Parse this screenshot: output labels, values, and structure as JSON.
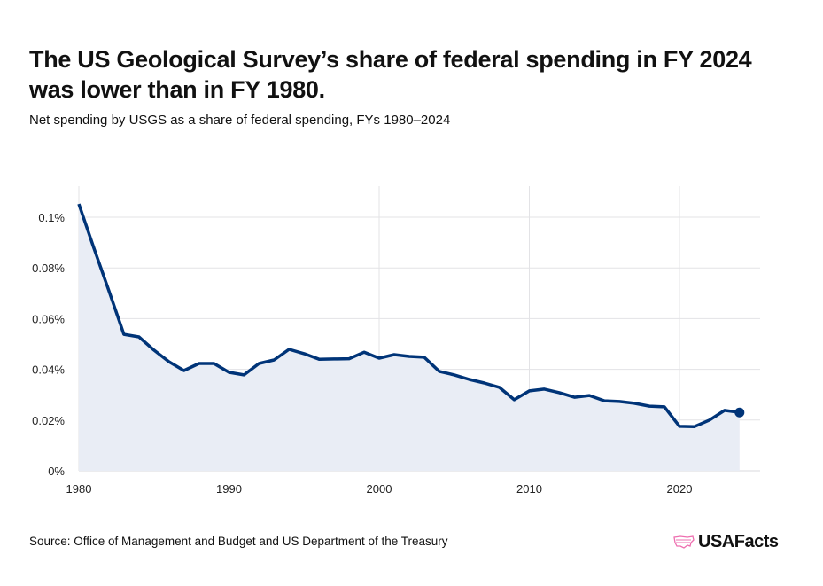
{
  "title": "The US Geological Survey’s share of federal spending in FY 2024 was lower than in FY 1980.",
  "subtitle": "Net spending by USGS as a share of federal spending, FYs 1980–2024",
  "source": "Source: Office of Management and Budget and US Department of the Treasury",
  "logo": "USAFacts",
  "colors": {
    "line": "#003478",
    "fill": "#e9edf5",
    "grid": "#e3e3e6",
    "logo_icon": "#ee6fb0"
  },
  "chart_data": {
    "type": "area",
    "title": "The US Geological Survey’s share of federal spending in FY 2024 was lower than in FY 1980.",
    "subtitle": "Net spending by USGS as a share of federal spending, FYs 1980–2024",
    "xlabel": "",
    "ylabel": "",
    "xlim": [
      1980,
      2025
    ],
    "ylim": [
      0,
      0.11
    ],
    "grid": true,
    "x_ticks": [
      1980,
      1990,
      2000,
      2010,
      2020
    ],
    "x_tick_labels": [
      "1980",
      "1990",
      "2000",
      "2010",
      "2020"
    ],
    "y_ticks": [
      0,
      0.02,
      0.04,
      0.06,
      0.08,
      0.1
    ],
    "y_tick_labels": [
      "0%",
      "0.02%",
      "0.04%",
      "0.06%",
      "0.08%",
      "0.1%"
    ],
    "unit": "percent of federal spending",
    "x": [
      1980,
      1981,
      1982,
      1983,
      1984,
      1985,
      1986,
      1987,
      1988,
      1989,
      1990,
      1991,
      1992,
      1993,
      1994,
      1995,
      1996,
      1997,
      1998,
      1999,
      2000,
      2001,
      2002,
      2003,
      2004,
      2005,
      2006,
      2007,
      2008,
      2009,
      2010,
      2011,
      2012,
      2013,
      2014,
      2015,
      2016,
      2017,
      2018,
      2019,
      2020,
      2021,
      2022,
      2023,
      2024
    ],
    "values": [
      0.1052,
      0.0878,
      0.071,
      0.0538,
      0.0528,
      0.0476,
      0.043,
      0.0395,
      0.0423,
      0.0423,
      0.0388,
      0.0378,
      0.0423,
      0.0437,
      0.0479,
      0.0462,
      0.044,
      0.0441,
      0.0442,
      0.0468,
      0.0444,
      0.0458,
      0.0451,
      0.0448,
      0.0392,
      0.0378,
      0.036,
      0.0346,
      0.0329,
      0.028,
      0.0315,
      0.0322,
      0.0308,
      0.029,
      0.0297,
      0.0276,
      0.0273,
      0.0266,
      0.0255,
      0.0252,
      0.0175,
      0.0174,
      0.02,
      0.0238,
      0.023
    ],
    "end_marker": true
  }
}
